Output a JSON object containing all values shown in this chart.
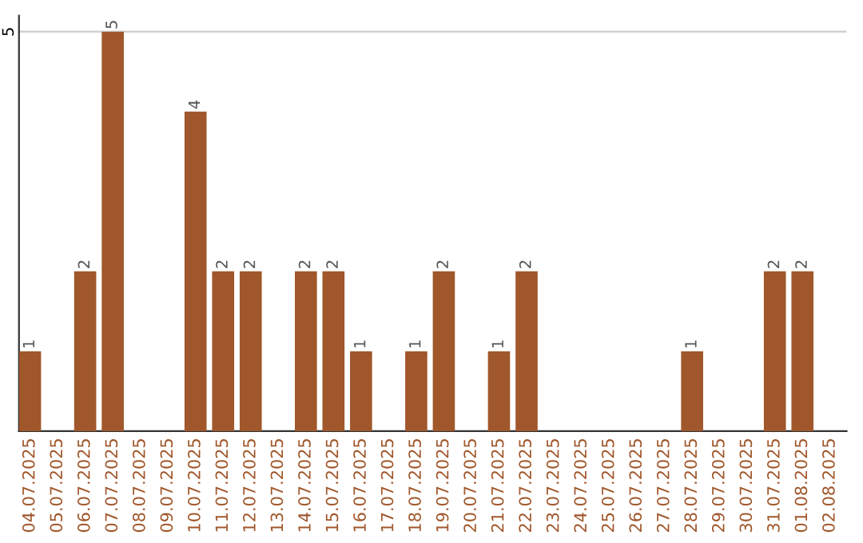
{
  "chart_data": {
    "type": "bar",
    "categories": [
      "04.07.2025",
      "05.07.2025",
      "06.07.2025",
      "07.07.2025",
      "08.07.2025",
      "09.07.2025",
      "10.07.2025",
      "11.07.2025",
      "12.07.2025",
      "13.07.2025",
      "14.07.2025",
      "15.07.2025",
      "16.07.2025",
      "17.07.2025",
      "18.07.2025",
      "19.07.2025",
      "20.07.2025",
      "21.07.2025",
      "22.07.2025",
      "23.07.2025",
      "24.07.2025",
      "25.07.2025",
      "26.07.2025",
      "27.07.2025",
      "28.07.2025",
      "29.07.2025",
      "30.07.2025",
      "31.07.2025",
      "01.08.2025",
      "02.08.2025"
    ],
    "values": [
      1,
      0,
      2,
      5,
      0,
      0,
      4,
      2,
      2,
      0,
      2,
      2,
      1,
      0,
      1,
      2,
      0,
      1,
      2,
      0,
      0,
      0,
      0,
      0,
      1,
      0,
      0,
      2,
      2,
      0
    ],
    "value_labels": [
      "1",
      null,
      "2",
      "5",
      null,
      null,
      "4",
      "2",
      "2",
      null,
      "2",
      "2",
      "1",
      null,
      "1",
      "2",
      null,
      "1",
      "2",
      null,
      null,
      null,
      null,
      null,
      "1",
      null,
      null,
      "2",
      "2",
      null
    ],
    "color": "#a0572b",
    "ylim": [
      0,
      5.2
    ],
    "yticks": [
      5
    ],
    "grid": "y"
  }
}
